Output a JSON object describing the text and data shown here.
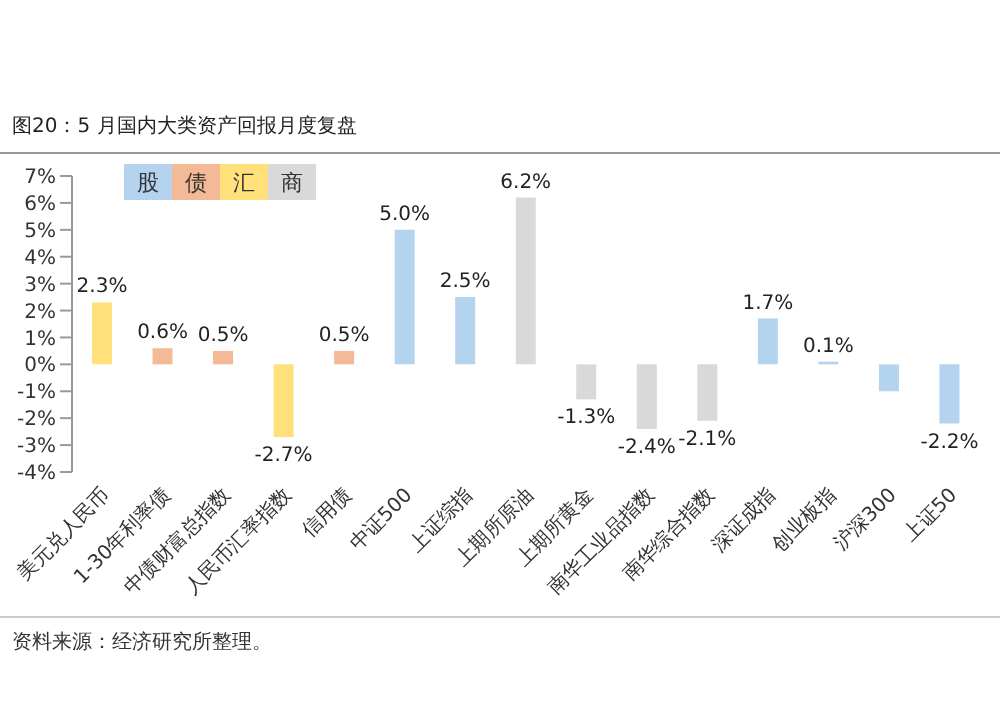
{
  "chart_data": {
    "type": "bar",
    "title": "图20：5 月国内大类资产回报月度复盘",
    "categories": [
      "美元兑人民币",
      "1-30年利率债",
      "中债财富总指数",
      "人民币汇率指数",
      "信用债",
      "中证500",
      "上证综指",
      "上期所原油",
      "上期所黄金",
      "南华工业品指数",
      "南华综合指数",
      "深证成指",
      "创业板指",
      "沪深300",
      "上证50"
    ],
    "stacked": true,
    "series": [
      {
        "name": "股",
        "color": "#b4d3ef",
        "values": [
          null,
          null,
          null,
          null,
          null,
          5.0,
          2.5,
          null,
          null,
          null,
          null,
          1.7,
          0.1,
          -1.0,
          -2.2
        ],
        "value_labels": [
          null,
          null,
          null,
          null,
          null,
          "5.0%",
          "2.5%",
          null,
          null,
          null,
          null,
          "1.7%",
          "0.1%",
          null,
          "-2.2%"
        ]
      },
      {
        "name": "债",
        "color": "#f4b996",
        "values": [
          null,
          0.6,
          0.5,
          null,
          0.5,
          null,
          null,
          null,
          null,
          null,
          null,
          null,
          null,
          null,
          null
        ],
        "value_labels": [
          null,
          "0.6%",
          "0.5%",
          null,
          "0.5%",
          null,
          null,
          null,
          null,
          null,
          null,
          null,
          null,
          null,
          null
        ]
      },
      {
        "name": "汇",
        "color": "#ffe07a",
        "values": [
          2.3,
          null,
          null,
          -2.7,
          null,
          null,
          null,
          null,
          null,
          null,
          null,
          null,
          null,
          null,
          null
        ],
        "value_labels": [
          "2.3%",
          null,
          null,
          "-2.7%",
          null,
          null,
          null,
          null,
          null,
          null,
          null,
          null,
          null,
          null,
          null
        ]
      },
      {
        "name": "商",
        "color": "#d9d9d9",
        "values": [
          null,
          null,
          null,
          null,
          null,
          null,
          null,
          6.2,
          -1.3,
          -2.4,
          -2.1,
          null,
          null,
          null,
          null
        ],
        "value_labels": [
          null,
          null,
          null,
          null,
          null,
          null,
          null,
          "6.2%",
          "-1.3%",
          "-2.4%",
          "-2.1%",
          null,
          null,
          null,
          null
        ]
      }
    ],
    "ylim": [
      -4,
      7
    ],
    "yticks": [
      {
        "value": -4,
        "label": "-4%"
      },
      {
        "value": -3,
        "label": "-3%"
      },
      {
        "value": -2,
        "label": "-2%"
      },
      {
        "value": -1,
        "label": "-1%"
      },
      {
        "value": 0,
        "label": "0%"
      },
      {
        "value": 1,
        "label": "1%"
      },
      {
        "value": 2,
        "label": "2%"
      },
      {
        "value": 3,
        "label": "3%"
      },
      {
        "value": 4,
        "label": "4%"
      },
      {
        "value": 5,
        "label": "5%"
      },
      {
        "value": 6,
        "label": "6%"
      },
      {
        "value": 7,
        "label": "7%"
      }
    ],
    "grid": false,
    "legend": "top left",
    "annotations": [
      "资料来源：经济研究所整理。"
    ]
  }
}
